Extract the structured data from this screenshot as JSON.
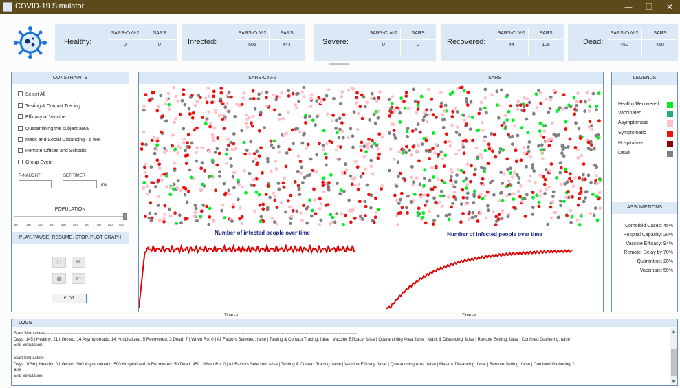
{
  "window": {
    "title": "COVID-19 Simulator",
    "controls": [
      "—",
      "☐",
      "✕"
    ]
  },
  "stats": [
    {
      "label": "Healthy:",
      "cols": [
        "SARS-CoV-2",
        "SARS"
      ],
      "values": [
        "0",
        "0"
      ]
    },
    {
      "label": "Infected:",
      "cols": [
        "SARS-CoV-2",
        "SARS"
      ],
      "values": [
        "506",
        "444"
      ]
    },
    {
      "label": "Severe:",
      "cols": [
        "SARS-CoV-2",
        "SARS"
      ],
      "values": [
        "0",
        "0"
      ]
    },
    {
      "label": "Recovered:",
      "cols": [
        "SARS-CoV-2",
        "SARS"
      ],
      "values": [
        "44",
        "106"
      ]
    },
    {
      "label": "Dead:",
      "cols": [
        "SARS-CoV-2",
        "SARS"
      ],
      "values": [
        "450",
        "450"
      ]
    }
  ],
  "constraints": {
    "title": "CONSTRAINTS",
    "options": [
      "Select All",
      "Testing & Contact Tracing",
      "Efficacy of Vaccine",
      "Quarantining the subject area",
      "Mask and Social Distancing - 6 feet",
      "Remote Offices and Schools",
      "Group Event"
    ],
    "r_naught_label": "R-NAUGHT",
    "set_timer_label": "SET-TIMER",
    "timer_unit": "ms",
    "population_label": "POPULATION",
    "slider_ticks": [
      "50",
      "150",
      "250",
      "350",
      "450",
      "550",
      "650",
      "750",
      "850",
      "950"
    ],
    "slider_level": 1.0,
    "controls_title": "PLAY, PAUSE, RESUME, STOP, PLOT GRAPH",
    "play_icon": "▷",
    "pause_icon": "▮▮",
    "stop_icon": "■",
    "resume_icon": "▮▷",
    "plot_label": "PLOT"
  },
  "sims": [
    {
      "name": "SARS-CoV-2",
      "graph_title": "Number of infected people over time",
      "time_label": "Time ->"
    },
    {
      "name": "SARS",
      "graph_title": "Number of infected people over time",
      "time_label": "Time ->"
    }
  ],
  "legends": {
    "title": "LEGENDS",
    "items": [
      {
        "label": "Healthy/Recovered",
        "color": "#00ee22"
      },
      {
        "label": "Vaccinated",
        "color": "#22aa77"
      },
      {
        "label": "Asymptomatic",
        "color": "#ffc0cb"
      },
      {
        "label": "Symptomatic",
        "color": "#ee1111"
      },
      {
        "label": "Hospitalized",
        "color": "#8b0000"
      },
      {
        "label": "Dead",
        "color": "#808080"
      }
    ]
  },
  "assumptions": {
    "title": "ASSUMPTIONS",
    "items": [
      "Comorbid Cases: 45%",
      "Hospital Capacity: 20%",
      "Vaccine Efficacy: 94%",
      "Remote: Delay by 70%",
      "Quarantine: 20%",
      "Vaccinate: 50%"
    ]
  },
  "logs": {
    "title": "LOGS",
    "lines": [
      "Start Simulation",
      "Days: 145 |  Healthy: 21 Infected: 14 Asymptomatic: 14 Hospitalized: 5 Recovered: 3 Dead: 7 | When Ro: 0 |  All Factors Selected: false |  Testing & Contact Tracing: false |  Vaccine Efficacy: false |  Quarantining Area: false |  Mask & Distancing: false |  Remote Setting: false |  Confined Gathering: false",
      "End Simulation",
      "Start Simulation",
      "Days: 1056 |  Healthy: 0 Infected: 500 Asymptomatic: 500 Hospitalized: 0 Recovered: 50 Dead: 450 |  When Ro: 0 |  All Factors Selected: false |  Testing & Contact Tracing: false |  Vaccine Efficacy: false |  Quarantining Area: false |  Mask & Distancing: false |  Remote Setting: false |  Confined Gathering: f",
      "alse",
      "End Simulation"
    ]
  }
}
